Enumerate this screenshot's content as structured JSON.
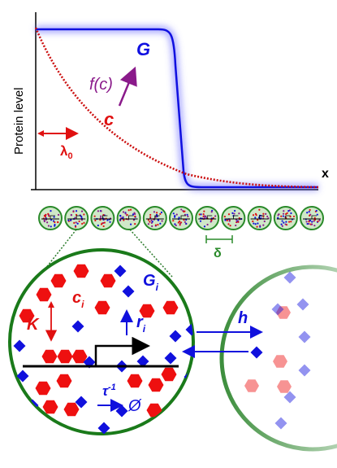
{
  "graph": {
    "ylabel": "Protein level",
    "xlabel": "x",
    "G_label": "G",
    "c_label": "c",
    "f_label": "f(c)",
    "lambda_label": "λ",
    "lambda_sub": "0",
    "colors": {
      "G": "#1010e0",
      "c": "#e01010",
      "f": "#8a1a8a"
    }
  },
  "cells": {
    "count": 11,
    "delta_label": "δ",
    "colors": {
      "membrane": "#2a8a2a",
      "fill": "#cfe8c8"
    }
  },
  "zoom": {
    "K_label": "K",
    "c_label": "c",
    "c_sub": "i",
    "G_label": "G",
    "G_sub": "i",
    "r_label": "r",
    "r_sub": "i",
    "h_label": "h",
    "tau_label": "τ",
    "tau_sup": "-1",
    "null_label": "Ø",
    "colors": {
      "hexagon": "#ee1010",
      "diamond": "#1010dd",
      "membrane": "#1a7a1a"
    }
  }
}
